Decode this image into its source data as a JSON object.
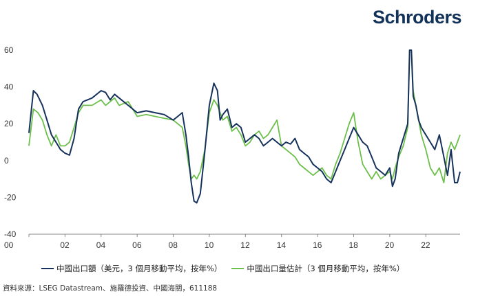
{
  "logo": "Schroders",
  "source": "資料來源：LSEG Datastream、施羅德投資、中國海關，611188",
  "chart_data": {
    "type": "line",
    "title": "",
    "xlabel": "",
    "ylabel": "",
    "xlim": [
      2000,
      2023.9
    ],
    "ylim": [
      -40,
      60
    ],
    "yticks": [
      60,
      40,
      20,
      0,
      -20,
      -40
    ],
    "xticks": [
      "00",
      "02",
      "04",
      "06",
      "08",
      "10",
      "12",
      "14",
      "16",
      "18",
      "20",
      "22"
    ],
    "grid": false,
    "legend_position": "bottom",
    "series": [
      {
        "name": "中國出口額（美元，3 個月移動平均，按年%）",
        "color": "#16325c",
        "x": [
          2000.0,
          2000.25,
          2000.45,
          2000.75,
          2001.0,
          2001.25,
          2001.5,
          2001.75,
          2002.0,
          2002.25,
          2002.5,
          2002.75,
          2003.0,
          2003.5,
          2004.0,
          2004.25,
          2004.5,
          2004.75,
          2005.0,
          2005.5,
          2006.0,
          2006.5,
          2007.0,
          2007.5,
          2008.0,
          2008.25,
          2008.5,
          2008.7,
          2008.85,
          2009.0,
          2009.15,
          2009.3,
          2009.5,
          2009.75,
          2010.0,
          2010.25,
          2010.45,
          2010.6,
          2010.75,
          2011.0,
          2011.25,
          2011.5,
          2011.75,
          2012.0,
          2012.25,
          2012.5,
          2012.75,
          2013.0,
          2013.25,
          2013.5,
          2013.75,
          2014.0,
          2014.25,
          2014.5,
          2014.75,
          2015.0,
          2015.25,
          2015.5,
          2015.75,
          2016.0,
          2016.25,
          2016.5,
          2016.75,
          2017.0,
          2017.25,
          2017.5,
          2017.75,
          2018.0,
          2018.25,
          2018.5,
          2018.75,
          2019.0,
          2019.25,
          2019.5,
          2019.75,
          2020.0,
          2020.15,
          2020.3,
          2020.5,
          2020.75,
          2021.0,
          2021.1,
          2021.2,
          2021.3,
          2021.45,
          2021.6,
          2021.75,
          2022.0,
          2022.25,
          2022.5,
          2022.75,
          2023.0,
          2023.2,
          2023.4,
          2023.6,
          2023.75,
          2023.9
        ],
        "values": [
          15,
          38,
          36,
          30,
          22,
          14,
          10,
          6,
          4,
          3,
          12,
          28,
          32,
          34,
          38,
          37,
          33,
          36,
          34,
          30,
          26,
          27,
          26,
          25,
          22,
          24,
          26,
          14,
          2,
          -12,
          -22,
          -23,
          -18,
          5,
          30,
          42,
          38,
          22,
          25,
          28,
          18,
          20,
          18,
          10,
          12,
          14,
          12,
          8,
          10,
          12,
          10,
          8,
          10,
          9,
          12,
          6,
          4,
          2,
          -2,
          -4,
          -6,
          -10,
          -12,
          -6,
          0,
          6,
          12,
          18,
          14,
          10,
          8,
          2,
          -4,
          -6,
          -8,
          -4,
          -14,
          -10,
          4,
          12,
          20,
          60,
          60,
          35,
          30,
          22,
          18,
          14,
          10,
          6,
          14,
          2,
          -8,
          6,
          -12,
          -12,
          -6
        ],
        "style": "solid"
      },
      {
        "name": "中國出口量估計（3 個月移動平均，按年%）",
        "color": "#6cbf4a",
        "x": [
          2000.0,
          2000.25,
          2000.5,
          2000.75,
          2001.0,
          2001.25,
          2001.5,
          2001.75,
          2002.0,
          2002.25,
          2002.5,
          2002.75,
          2003.0,
          2003.5,
          2004.0,
          2004.25,
          2004.5,
          2004.75,
          2005.0,
          2005.5,
          2006.0,
          2006.5,
          2007.0,
          2007.5,
          2008.0,
          2008.25,
          2008.5,
          2008.7,
          2008.85,
          2009.0,
          2009.15,
          2009.3,
          2009.5,
          2009.75,
          2010.0,
          2010.25,
          2010.45,
          2010.6,
          2010.75,
          2011.0,
          2011.25,
          2011.5,
          2011.75,
          2012.0,
          2012.25,
          2012.5,
          2012.75,
          2013.0,
          2013.25,
          2013.5,
          2013.75,
          2014.0,
          2014.25,
          2014.5,
          2014.75,
          2015.0,
          2015.25,
          2015.5,
          2015.75,
          2016.0,
          2016.25,
          2016.5,
          2016.75,
          2017.0,
          2017.25,
          2017.5,
          2017.75,
          2018.0,
          2018.25,
          2018.5,
          2018.75,
          2019.0,
          2019.25,
          2019.5,
          2019.75,
          2020.0,
          2020.15,
          2020.3,
          2020.5,
          2020.75,
          2021.0,
          2021.1,
          2021.2,
          2021.3,
          2021.45,
          2021.6,
          2021.75,
          2022.0,
          2022.25,
          2022.5,
          2022.75,
          2023.0,
          2023.2,
          2023.4,
          2023.6,
          2023.75,
          2023.9
        ],
        "values": [
          8,
          28,
          26,
          22,
          14,
          8,
          14,
          8,
          8,
          10,
          18,
          26,
          30,
          30,
          33,
          30,
          32,
          34,
          30,
          32,
          24,
          25,
          24,
          23,
          22,
          20,
          18,
          8,
          -2,
          -10,
          -8,
          -10,
          -6,
          6,
          26,
          33,
          30,
          26,
          22,
          24,
          16,
          18,
          14,
          8,
          10,
          14,
          16,
          12,
          14,
          18,
          22,
          8,
          6,
          4,
          2,
          -2,
          -4,
          -6,
          -8,
          -6,
          -4,
          -8,
          -10,
          -2,
          4,
          12,
          20,
          26,
          10,
          -2,
          -6,
          -10,
          -6,
          -10,
          -8,
          -6,
          -10,
          -4,
          2,
          8,
          18,
          60,
          60,
          38,
          30,
          22,
          14,
          6,
          -4,
          -8,
          -4,
          -12,
          4,
          10,
          6,
          10,
          14
        ],
        "style": "solid"
      }
    ]
  }
}
